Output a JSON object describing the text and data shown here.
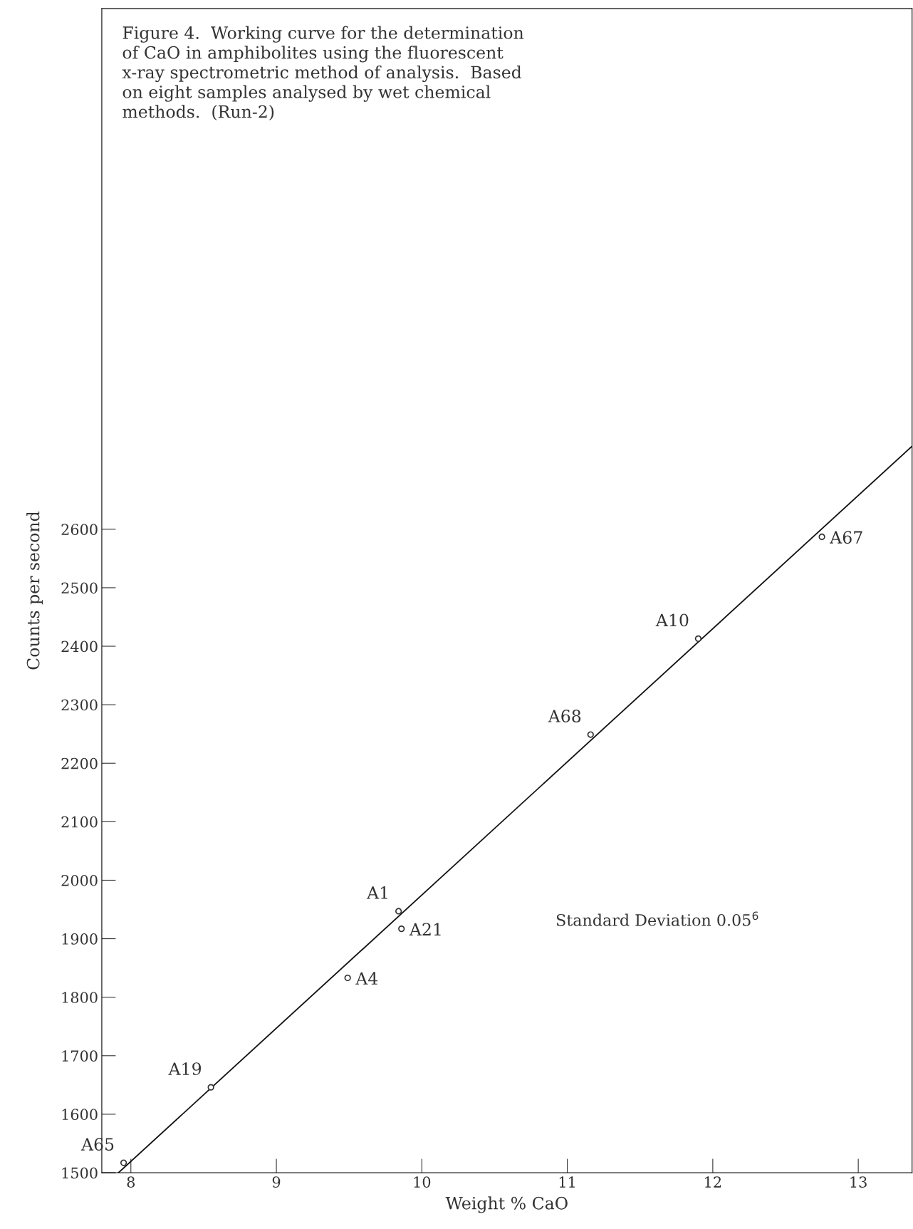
{
  "chart_data": {
    "type": "scatter",
    "title": "Figure 4.  Working curve for the determination\nof CaO in amphibolites using the fluorescent\nx-ray spectrometric method of analysis.  Based\non eight samples analysed by wet chemical\nmethods.  (Run-2)",
    "xlabel": "Weight % CaO",
    "ylabel": "Counts per second",
    "series": [
      {
        "marker": "circle",
        "color": "#333333",
        "x": [
          7.95,
          8.55,
          9.49,
          9.84,
          9.86,
          11.16,
          11.9,
          12.75
        ],
        "values": [
          1517,
          1646,
          1833,
          1947,
          1917,
          2249,
          2413,
          2587
        ]
      },
      {
        "type": "line",
        "color": "#111111",
        "x": [
          7.915,
          13.37
        ],
        "values": [
          1500,
          2742
        ]
      }
    ],
    "annotations": [
      {
        "text": "A65",
        "x": 7.95,
        "y": 1517
      },
      {
        "text": "A19",
        "x": 8.55,
        "y": 1646
      },
      {
        "text": "A4",
        "x": 9.49,
        "y": 1833
      },
      {
        "text": "A1",
        "x": 9.84,
        "y": 1947
      },
      {
        "text": "A21",
        "x": 9.86,
        "y": 1917
      },
      {
        "text": "A68",
        "x": 11.16,
        "y": 2249
      },
      {
        "text": "A10",
        "x": 11.9,
        "y": 2413
      },
      {
        "text": "A67",
        "x": 12.75,
        "y": 2587
      },
      "Standard Deviation 0.05$^{6}$"
    ],
    "xlim": [
      7.8,
      13.37
    ],
    "ylim": [
      1500,
      3490
    ],
    "xticks": [
      8,
      9,
      10,
      11,
      12,
      13
    ],
    "yticks": [
      1500,
      1600,
      1700,
      1800,
      1900,
      2000,
      2100,
      2200,
      2300,
      2400,
      2500,
      2600
    ],
    "grid": false,
    "legend": false,
    "line_style": "solid"
  }
}
